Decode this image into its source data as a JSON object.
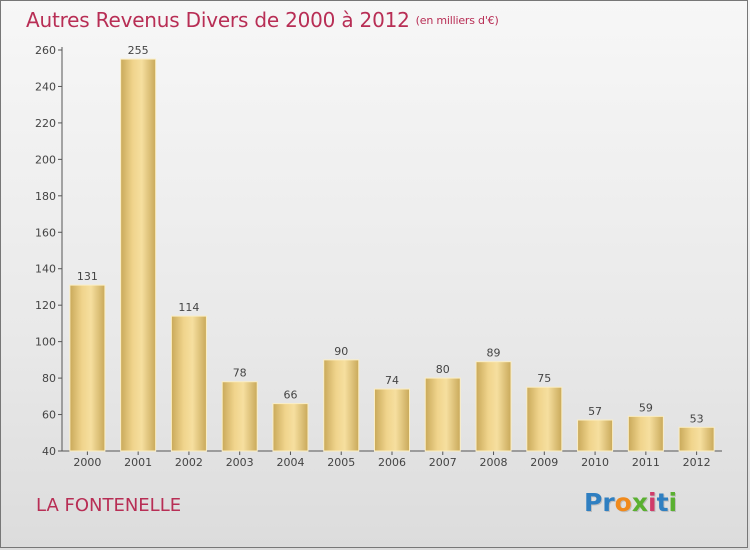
{
  "header": {
    "title": "Autres Revenus Divers de 2000 à 2012",
    "subtitle": "(en milliers d'€)"
  },
  "footer": {
    "commune": "LA FONTENELLE",
    "logo_text": "Proxiti",
    "logo_letters": [
      "P",
      "r",
      "o",
      "x",
      "i",
      "t",
      "i"
    ],
    "logo_colors": [
      "#2f7fc1",
      "#2f7fc1",
      "#f08a1c",
      "#5ab031",
      "#d03c6a",
      "#2f7fc1",
      "#5ab031"
    ]
  },
  "colors": {
    "bar_light": "#f5dc98",
    "bar_dark": "#c9a95a",
    "accent": "#b82e55"
  },
  "chart_data": {
    "type": "bar",
    "categories": [
      "2000",
      "2001",
      "2002",
      "2003",
      "2004",
      "2005",
      "2006",
      "2007",
      "2008",
      "2009",
      "2010",
      "2011",
      "2012"
    ],
    "values": [
      131,
      255,
      114,
      78,
      66,
      90,
      74,
      80,
      89,
      75,
      57,
      59,
      53
    ],
    "ylim": [
      40,
      260
    ],
    "yticks": [
      40,
      60,
      80,
      100,
      120,
      140,
      160,
      180,
      200,
      220,
      240,
      260
    ],
    "grid": false,
    "data_labels": true
  }
}
